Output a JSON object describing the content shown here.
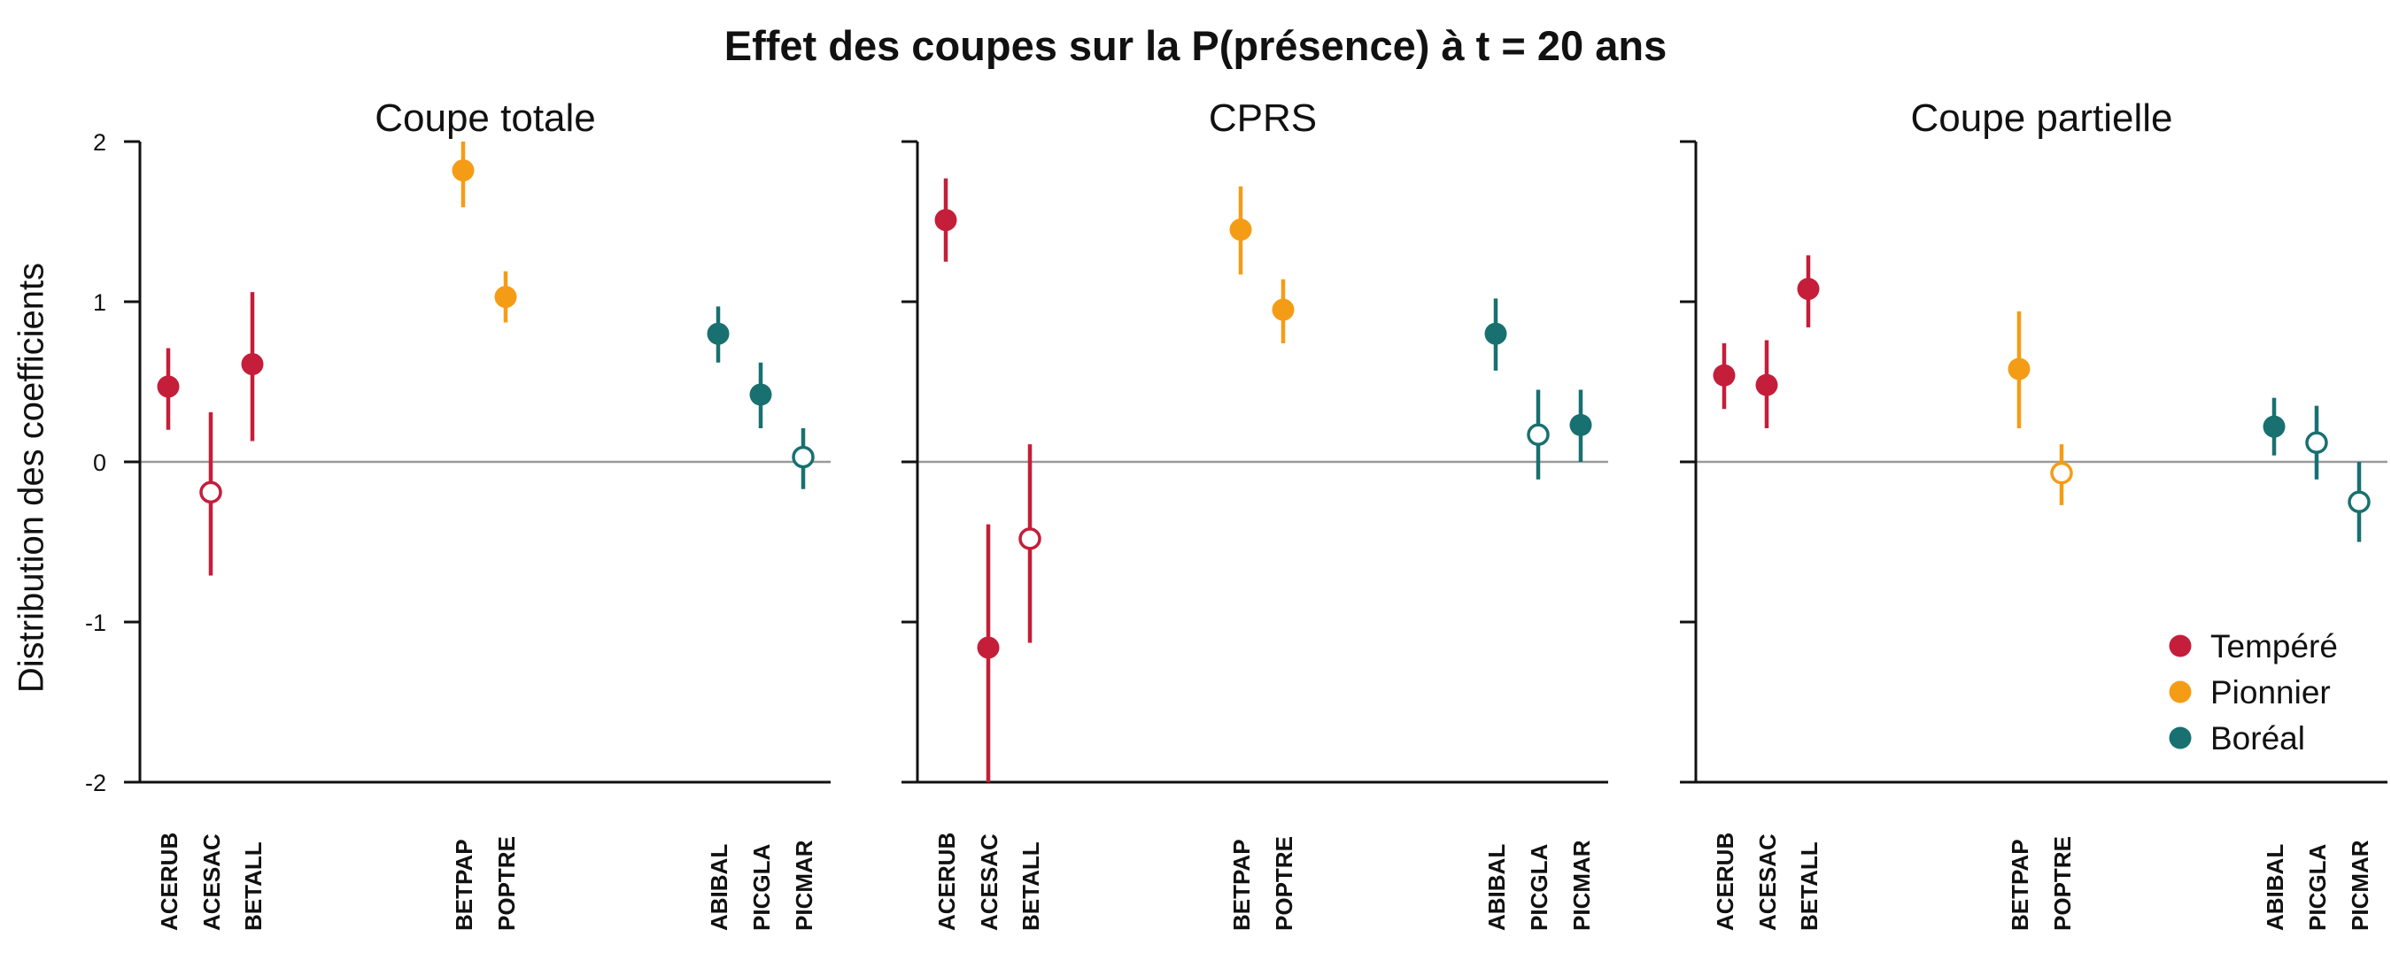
{
  "chart_data": {
    "type": "scatter",
    "title": "Effet des coupes sur la P(présence) à t = 20 ans",
    "ylabel": "Distribution des coefficients",
    "ylim": [
      -2,
      2
    ],
    "yticks": [
      -2,
      -1,
      0,
      1,
      2
    ],
    "ytick_labels": [
      "-2",
      "-1",
      "0",
      "1",
      "2"
    ],
    "reference_line": 0,
    "species": [
      "ACERUB",
      "ACESAC",
      "BETALL",
      "BETPAP",
      "POPTRE",
      "ABIBAL",
      "PICGLA",
      "PICMAR"
    ],
    "species_group": [
      "Tempéré",
      "Tempéré",
      "Tempéré",
      "Pionnier",
      "Pionnier",
      "Boréal",
      "Boréal",
      "Boréal"
    ],
    "groups": [
      {
        "name": "Tempéré",
        "color": "#C41E3A"
      },
      {
        "name": "Pionnier",
        "color": "#F59C17"
      },
      {
        "name": "Boréal",
        "color": "#197070"
      }
    ],
    "legend_position": "bottom-right of last panel",
    "marker_note": "filled = interval excludes 0; hollow = interval includes 0",
    "panels": [
      {
        "title": "Coupe totale",
        "points": [
          {
            "species": "ACERUB",
            "estimate": 0.47,
            "low": 0.2,
            "high": 0.71,
            "filled": true
          },
          {
            "species": "ACESAC",
            "estimate": -0.19,
            "low": -0.71,
            "high": 0.31,
            "filled": false
          },
          {
            "species": "BETALL",
            "estimate": 0.61,
            "low": 0.13,
            "high": 1.06,
            "filled": true
          },
          {
            "species": "BETPAP",
            "estimate": 1.82,
            "low": 1.59,
            "high": 2.0,
            "filled": true
          },
          {
            "species": "POPTRE",
            "estimate": 1.03,
            "low": 0.87,
            "high": 1.19,
            "filled": true
          },
          {
            "species": "ABIBAL",
            "estimate": 0.8,
            "low": 0.62,
            "high": 0.97,
            "filled": true
          },
          {
            "species": "PICGLA",
            "estimate": 0.42,
            "low": 0.21,
            "high": 0.62,
            "filled": true
          },
          {
            "species": "PICMAR",
            "estimate": 0.03,
            "low": -0.17,
            "high": 0.21,
            "filled": false
          }
        ]
      },
      {
        "title": "CPRS",
        "points": [
          {
            "species": "ACERUB",
            "estimate": 1.51,
            "low": 1.25,
            "high": 1.77,
            "filled": true
          },
          {
            "species": "ACESAC",
            "estimate": -1.16,
            "low": -2.0,
            "high": -0.39,
            "filled": true
          },
          {
            "species": "BETALL",
            "estimate": -0.48,
            "low": -1.13,
            "high": 0.11,
            "filled": false
          },
          {
            "species": "BETPAP",
            "estimate": 1.45,
            "low": 1.17,
            "high": 1.72,
            "filled": true
          },
          {
            "species": "POPTRE",
            "estimate": 0.95,
            "low": 0.74,
            "high": 1.14,
            "filled": true
          },
          {
            "species": "ABIBAL",
            "estimate": 0.8,
            "low": 0.57,
            "high": 1.02,
            "filled": true
          },
          {
            "species": "PICGLA",
            "estimate": 0.17,
            "low": -0.11,
            "high": 0.45,
            "filled": false
          },
          {
            "species": "PICMAR",
            "estimate": 0.23,
            "low": 0.0,
            "high": 0.45,
            "filled": true
          }
        ]
      },
      {
        "title": "Coupe partielle",
        "points": [
          {
            "species": "ACERUB",
            "estimate": 0.54,
            "low": 0.33,
            "high": 0.74,
            "filled": true
          },
          {
            "species": "ACESAC",
            "estimate": 0.48,
            "low": 0.21,
            "high": 0.76,
            "filled": true
          },
          {
            "species": "BETALL",
            "estimate": 1.08,
            "low": 0.84,
            "high": 1.29,
            "filled": true
          },
          {
            "species": "BETPAP",
            "estimate": 0.58,
            "low": 0.21,
            "high": 0.94,
            "filled": true
          },
          {
            "species": "POPTRE",
            "estimate": -0.07,
            "low": -0.27,
            "high": 0.11,
            "filled": false
          },
          {
            "species": "ABIBAL",
            "estimate": 0.22,
            "low": 0.04,
            "high": 0.4,
            "filled": true
          },
          {
            "species": "PICGLA",
            "estimate": 0.12,
            "low": -0.11,
            "high": 0.35,
            "filled": false
          },
          {
            "species": "PICMAR",
            "estimate": -0.25,
            "low": -0.5,
            "high": 0.0,
            "filled": false
          }
        ]
      }
    ]
  }
}
